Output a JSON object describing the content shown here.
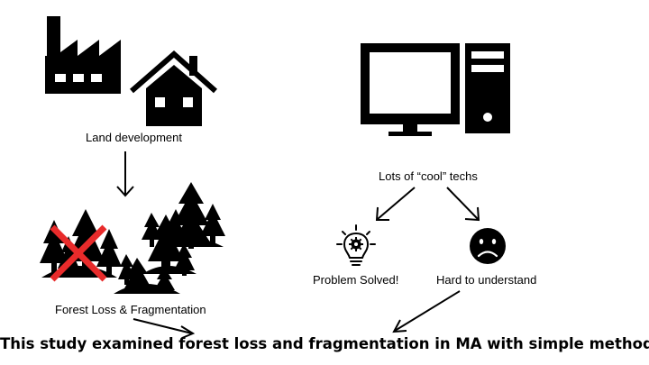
{
  "labels": {
    "land_development": "Land development",
    "forest_loss": "Forest Loss & Fragmentation",
    "cool_techs": "Lots of “cool” techs",
    "problem_solved": "Problem Solved!",
    "hard_to_understand": "Hard to understand"
  },
  "conclusion": "This study examined forest loss and fragmentation in MA with simple methods.",
  "icons": {
    "factory": "factory-icon",
    "house": "house-icon",
    "forest_lost": "forest-crossed-out-icon",
    "forest_fragmented": "forest-fragments-icon",
    "computer": "desktop-computer-icon",
    "lightbulb": "lightbulb-gear-icon",
    "sad_face": "sad-face-icon"
  },
  "colors": {
    "ink": "#000000",
    "cross": "#e82b2b",
    "background": "#ffffff"
  }
}
